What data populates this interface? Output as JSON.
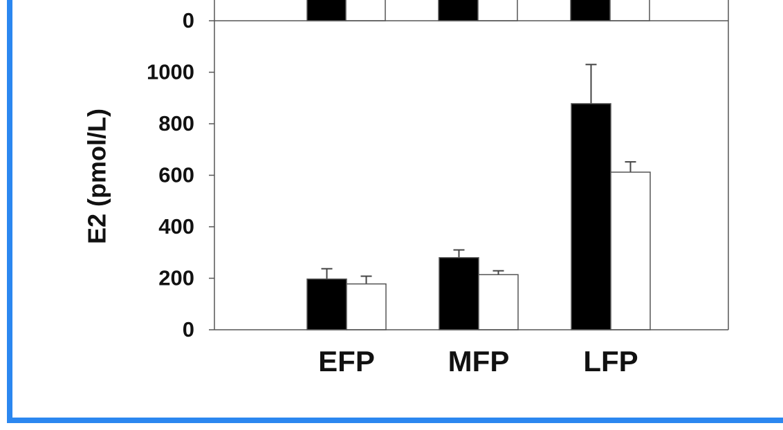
{
  "chart_data": [
    {
      "type": "bar",
      "yticks": [
        0
      ]
    },
    {
      "type": "bar",
      "y_label": "E2 (pmol/L)",
      "categories": [
        "EFP",
        "MFP",
        "LFP"
      ],
      "series": [
        {
          "color": "#000000",
          "values": [
            197,
            280,
            878
          ],
          "errors": [
            40,
            30,
            152
          ]
        },
        {
          "color": "#ffffff",
          "values": [
            178,
            214,
            612
          ],
          "errors": [
            30,
            15,
            40
          ]
        }
      ],
      "ylim": [
        0,
        1200
      ],
      "yticks": [
        0,
        200,
        400,
        600,
        800,
        1000
      ]
    }
  ]
}
